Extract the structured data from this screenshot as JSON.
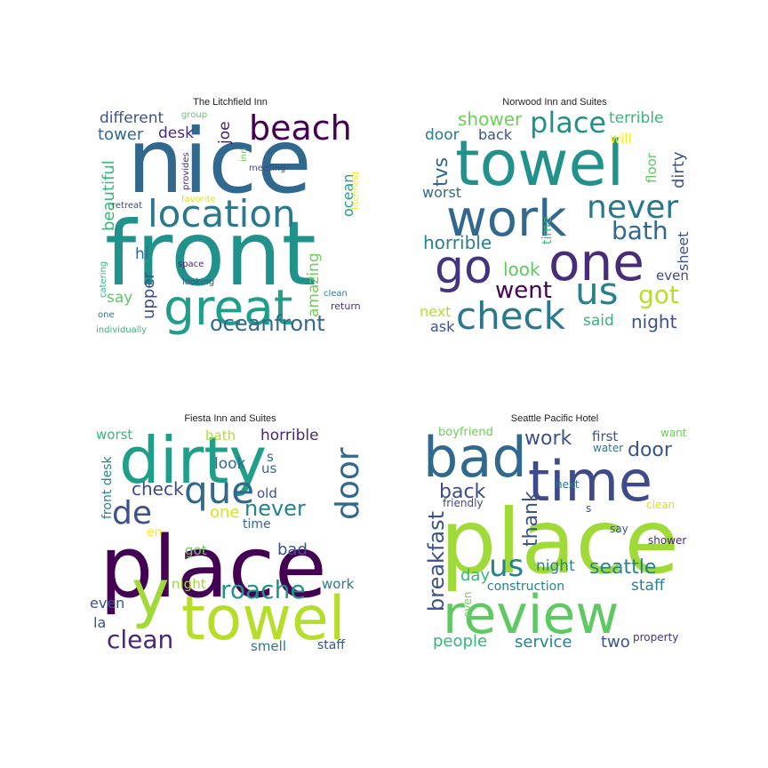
{
  "chart_data": [
    {
      "type": "wordcloud",
      "title": "The Litchfield Inn",
      "words": [
        {
          "text": "nice",
          "size": 100,
          "color": "#31688e"
        },
        {
          "text": "front",
          "size": 100,
          "color": "#21918c"
        },
        {
          "text": "location",
          "size": 42,
          "color": "#2a788e"
        },
        {
          "text": "great",
          "size": 55,
          "color": "#1f9e89"
        },
        {
          "text": "beach",
          "size": 38,
          "color": "#440154"
        },
        {
          "text": "oceanfront",
          "size": 24,
          "color": "#31688e"
        },
        {
          "text": "different",
          "size": 17,
          "color": "#3b528b"
        },
        {
          "text": "tower",
          "size": 18,
          "color": "#31688e"
        },
        {
          "text": "desk",
          "size": 17,
          "color": "#482878"
        },
        {
          "text": "joe",
          "size": 17,
          "color": "#481a6c"
        },
        {
          "text": "group",
          "size": 10,
          "color": "#5ec962"
        },
        {
          "text": "beautiful",
          "size": 18,
          "color": "#35b779"
        },
        {
          "text": "provides",
          "size": 10,
          "color": "#46337e"
        },
        {
          "text": "meeting",
          "size": 10,
          "color": "#3e4a89"
        },
        {
          "text": "inn",
          "size": 10,
          "color": "#6ece58"
        },
        {
          "text": "ocean",
          "size": 16,
          "color": "#1f9e89"
        },
        {
          "text": "litchfield",
          "size": 10,
          "color": "#fde725"
        },
        {
          "text": "retreat",
          "size": 10,
          "color": "#3e4a89"
        },
        {
          "text": "favorite",
          "size": 10,
          "color": "#d8e219"
        },
        {
          "text": "hi",
          "size": 17,
          "color": "#31688e"
        },
        {
          "text": "upper",
          "size": 18,
          "color": "#3b528b"
        },
        {
          "text": "amazing",
          "size": 17,
          "color": "#6ece58"
        },
        {
          "text": "space",
          "size": 10,
          "color": "#482878"
        },
        {
          "text": "looking",
          "size": 10,
          "color": "#3b528b"
        },
        {
          "text": "catering",
          "size": 10,
          "color": "#35b779"
        },
        {
          "text": "say",
          "size": 17,
          "color": "#5ec962"
        },
        {
          "text": "clean",
          "size": 10,
          "color": "#26828e"
        },
        {
          "text": "return",
          "size": 11,
          "color": "#46337e"
        },
        {
          "text": "one",
          "size": 10,
          "color": "#2a788e"
        },
        {
          "text": "individually",
          "size": 10,
          "color": "#35b779"
        }
      ]
    },
    {
      "type": "wordcloud",
      "title": "Norwood Inn and Suites",
      "words": [
        {
          "text": "towel",
          "size": 70,
          "color": "#21918c"
        },
        {
          "text": "work",
          "size": 56,
          "color": "#31688e"
        },
        {
          "text": "one",
          "size": 58,
          "color": "#472c7a"
        },
        {
          "text": "go",
          "size": 52,
          "color": "#46337e"
        },
        {
          "text": "us",
          "size": 42,
          "color": "#26828e"
        },
        {
          "text": "check",
          "size": 42,
          "color": "#2a788e"
        },
        {
          "text": "place",
          "size": 32,
          "color": "#21918c"
        },
        {
          "text": "never",
          "size": 36,
          "color": "#2a788e"
        },
        {
          "text": "bath",
          "size": 28,
          "color": "#31688e"
        },
        {
          "text": "shower",
          "size": 20,
          "color": "#6ece58"
        },
        {
          "text": "terrible",
          "size": 17,
          "color": "#35b779"
        },
        {
          "text": "door",
          "size": 17,
          "color": "#2a788e"
        },
        {
          "text": "back",
          "size": 16,
          "color": "#3b528b"
        },
        {
          "text": "will",
          "size": 15,
          "color": "#fde725"
        },
        {
          "text": "dirty",
          "size": 18,
          "color": "#3b528b"
        },
        {
          "text": "floor",
          "size": 15,
          "color": "#5ec962"
        },
        {
          "text": "tvs",
          "size": 22,
          "color": "#31688e"
        },
        {
          "text": "worst",
          "size": 16,
          "color": "#31688e"
        },
        {
          "text": "time",
          "size": 14,
          "color": "#35b779"
        },
        {
          "text": "horrible",
          "size": 20,
          "color": "#26828e"
        },
        {
          "text": "sheet",
          "size": 16,
          "color": "#3b528b"
        },
        {
          "text": "look",
          "size": 20,
          "color": "#5ec962"
        },
        {
          "text": "even",
          "size": 15,
          "color": "#3e4a89"
        },
        {
          "text": "went",
          "size": 26,
          "color": "#440154"
        },
        {
          "text": "got",
          "size": 28,
          "color": "#b5de2b"
        },
        {
          "text": "next",
          "size": 16,
          "color": "#b5de2b"
        },
        {
          "text": "said",
          "size": 17,
          "color": "#35b779"
        },
        {
          "text": "ask",
          "size": 16,
          "color": "#3b528b"
        },
        {
          "text": "night",
          "size": 20,
          "color": "#3b528b"
        }
      ]
    },
    {
      "type": "wordcloud",
      "title": "Fiesta Inn and Suites",
      "words": [
        {
          "text": "place",
          "size": 95,
          "color": "#440154"
        },
        {
          "text": "dirty",
          "size": 72,
          "color": "#1f9e89"
        },
        {
          "text": "towel",
          "size": 68,
          "color": "#b5de2b"
        },
        {
          "text": "y",
          "size": 72,
          "color": "#a0da39"
        },
        {
          "text": "que",
          "size": 42,
          "color": "#31688e"
        },
        {
          "text": "de",
          "size": 36,
          "color": "#3b528b"
        },
        {
          "text": "door",
          "size": 36,
          "color": "#31688e"
        },
        {
          "text": "roache",
          "size": 28,
          "color": "#21918c"
        },
        {
          "text": "never",
          "size": 24,
          "color": "#26828e"
        },
        {
          "text": "clean",
          "size": 28,
          "color": "#482878"
        },
        {
          "text": "check",
          "size": 20,
          "color": "#3e4a89"
        },
        {
          "text": "horrible",
          "size": 17,
          "color": "#482878"
        },
        {
          "text": "worst",
          "size": 15,
          "color": "#35b779"
        },
        {
          "text": "bath",
          "size": 15,
          "color": "#b5de2b"
        },
        {
          "text": "look",
          "size": 17,
          "color": "#31688e"
        },
        {
          "text": "s",
          "size": 15,
          "color": "#31688e"
        },
        {
          "text": "us",
          "size": 15,
          "color": "#31688e"
        },
        {
          "text": "front desk",
          "size": 14,
          "color": "#26828e"
        },
        {
          "text": "old",
          "size": 15,
          "color": "#3b528b"
        },
        {
          "text": "one",
          "size": 18,
          "color": "#d8e219"
        },
        {
          "text": "time",
          "size": 14,
          "color": "#31688e"
        },
        {
          "text": "en",
          "size": 14,
          "color": "#fde725"
        },
        {
          "text": "got",
          "size": 15,
          "color": "#6ece58"
        },
        {
          "text": "bad",
          "size": 18,
          "color": "#3b528b"
        },
        {
          "text": "night",
          "size": 15,
          "color": "#a0da39"
        },
        {
          "text": "work",
          "size": 15,
          "color": "#2a788e"
        },
        {
          "text": "even",
          "size": 16,
          "color": "#3b528b"
        },
        {
          "text": "la",
          "size": 16,
          "color": "#3b528b"
        },
        {
          "text": "smell",
          "size": 15,
          "color": "#2a788e"
        },
        {
          "text": "staff",
          "size": 14,
          "color": "#3b528b"
        }
      ]
    },
    {
      "type": "wordcloud",
      "title": "Seattle Pacific Hotel",
      "words": [
        {
          "text": "place",
          "size": 100,
          "color": "#a0da39"
        },
        {
          "text": "review",
          "size": 60,
          "color": "#5ec962"
        },
        {
          "text": "bad",
          "size": 62,
          "color": "#31688e"
        },
        {
          "text": "time",
          "size": 62,
          "color": "#3e4a89"
        },
        {
          "text": "us",
          "size": 34,
          "color": "#26828e"
        },
        {
          "text": "work",
          "size": 22,
          "color": "#3b528b"
        },
        {
          "text": "door",
          "size": 22,
          "color": "#3b528b"
        },
        {
          "text": "back",
          "size": 22,
          "color": "#3e4a89"
        },
        {
          "text": "thank",
          "size": 22,
          "color": "#3b528b"
        },
        {
          "text": "breakfast",
          "size": 24,
          "color": "#3b528b"
        },
        {
          "text": "seattle",
          "size": 22,
          "color": "#26828e"
        },
        {
          "text": "boyfriend",
          "size": 13,
          "color": "#6ece58"
        },
        {
          "text": "first",
          "size": 15,
          "color": "#3b528b"
        },
        {
          "text": "want",
          "size": 12,
          "color": "#6ece58"
        },
        {
          "text": "water",
          "size": 12,
          "color": "#2a788e"
        },
        {
          "text": "next",
          "size": 12,
          "color": "#2a788e"
        },
        {
          "text": "friendly",
          "size": 12,
          "color": "#3e4a89"
        },
        {
          "text": "s",
          "size": 12,
          "color": "#3b528b"
        },
        {
          "text": "clean",
          "size": 12,
          "color": "#d8e219"
        },
        {
          "text": "say",
          "size": 12,
          "color": "#3b528b"
        },
        {
          "text": "shower",
          "size": 12,
          "color": "#482878"
        },
        {
          "text": "night",
          "size": 17,
          "color": "#26828e"
        },
        {
          "text": "day",
          "size": 18,
          "color": "#35b779"
        },
        {
          "text": "construction",
          "size": 14,
          "color": "#26828e"
        },
        {
          "text": "staff",
          "size": 17,
          "color": "#26828e"
        },
        {
          "text": "even",
          "size": 12,
          "color": "#6ece58"
        },
        {
          "text": "people",
          "size": 18,
          "color": "#35b779"
        },
        {
          "text": "service",
          "size": 18,
          "color": "#26828e"
        },
        {
          "text": "two",
          "size": 18,
          "color": "#3b528b"
        },
        {
          "text": "property",
          "size": 12,
          "color": "#46337e"
        }
      ]
    }
  ]
}
